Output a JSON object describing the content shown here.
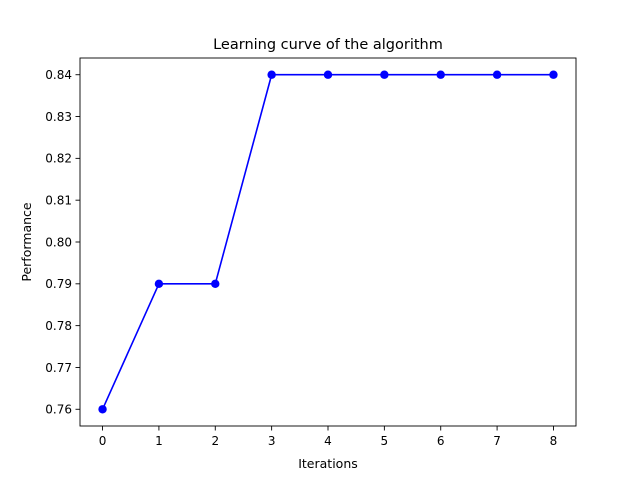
{
  "chart_data": {
    "type": "line",
    "title": "Learning curve of the algorithm",
    "xlabel": "Iterations",
    "ylabel": "Performance",
    "x": [
      0,
      1,
      2,
      3,
      4,
      5,
      6,
      7,
      8
    ],
    "xlim": [
      -0.4,
      8.4
    ],
    "ylim": [
      0.756,
      0.844
    ],
    "xticks": [
      "0",
      "1",
      "2",
      "3",
      "4",
      "5",
      "6",
      "7",
      "8"
    ],
    "yticks": [
      "0.76",
      "0.77",
      "0.78",
      "0.79",
      "0.80",
      "0.81",
      "0.82",
      "0.83",
      "0.84"
    ],
    "grid": false,
    "series": [
      {
        "values": [
          0.76,
          0.79,
          0.79,
          0.84,
          0.84,
          0.84,
          0.84,
          0.84,
          0.84
        ],
        "color": "#0000ff",
        "marker": "circle"
      }
    ]
  }
}
